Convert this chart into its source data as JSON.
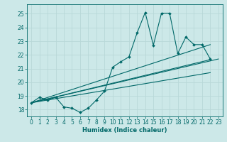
{
  "xlabel": "Humidex (Indice chaleur)",
  "background_color": "#cce8e8",
  "line_color": "#006868",
  "grid_color": "#b8d8d8",
  "xlim": [
    -0.5,
    23.5
  ],
  "ylim": [
    17.5,
    25.7
  ],
  "yticks": [
    18,
    19,
    20,
    21,
    22,
    23,
    24,
    25
  ],
  "xticks": [
    0,
    1,
    2,
    3,
    4,
    5,
    6,
    7,
    8,
    9,
    10,
    11,
    12,
    13,
    14,
    15,
    16,
    17,
    18,
    19,
    20,
    21,
    22,
    23
  ],
  "main_line": {
    "x": [
      0,
      1,
      2,
      3,
      4,
      5,
      6,
      7,
      8,
      9,
      10,
      11,
      12,
      13,
      14,
      15,
      16,
      17,
      18,
      19,
      20,
      21,
      22
    ],
    "y": [
      18.5,
      18.9,
      18.7,
      18.9,
      18.2,
      18.1,
      17.8,
      18.1,
      18.7,
      19.35,
      21.1,
      21.5,
      21.85,
      23.6,
      25.1,
      22.7,
      25.05,
      25.05,
      22.1,
      23.3,
      22.75,
      22.75,
      21.7
    ]
  },
  "straight_lines": [
    {
      "x": [
        0,
        23
      ],
      "y": [
        18.5,
        21.7
      ]
    },
    {
      "x": [
        0,
        22
      ],
      "y": [
        18.5,
        21.65
      ]
    },
    {
      "x": [
        0,
        22
      ],
      "y": [
        18.5,
        22.75
      ]
    },
    {
      "x": [
        0,
        22
      ],
      "y": [
        18.5,
        20.7
      ]
    }
  ]
}
